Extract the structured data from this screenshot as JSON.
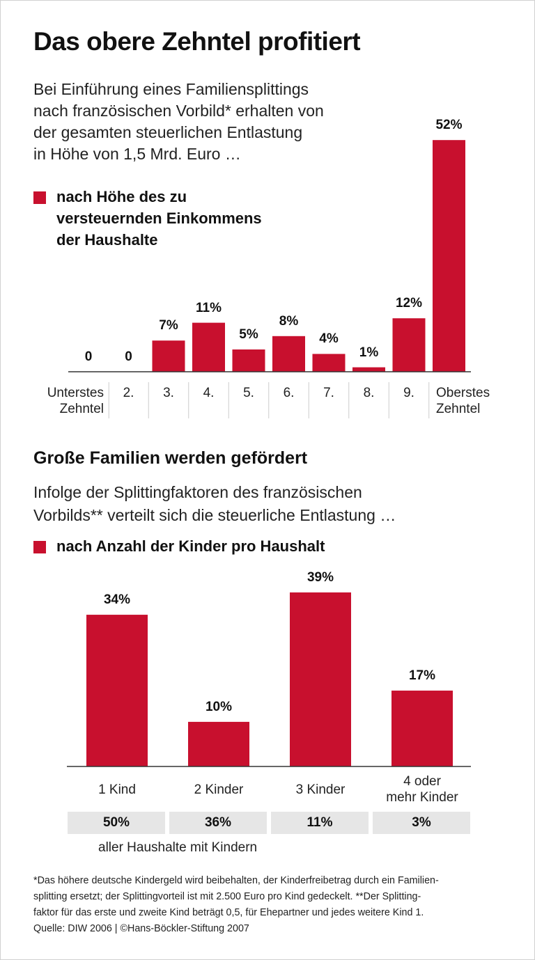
{
  "title": "Das obere Zehntel profitiert",
  "chart_data": [
    {
      "type": "bar",
      "subtitle": "Bei Einführung eines Familiensplittings\nnach französischen Vorbild* erhalten von\nder gesamten steuerlichen Entlastung\nin Höhe von 1,5 Mrd. Euro …",
      "categories": [
        "Unterstes\nZehntel",
        "2.",
        "3.",
        "4.",
        "5.",
        "6.",
        "7.",
        "8.",
        "9.",
        "Oberstes\nZehntel"
      ],
      "series": [
        {
          "name": "nach Höhe des zu\nversteuernden Einkommens\nder Haushalte",
          "color": "#c8102e",
          "values": [
            0,
            0,
            7,
            11,
            5,
            8,
            4,
            1,
            12,
            52
          ],
          "value_labels": [
            "0",
            "0",
            "7%",
            "11%",
            "5%",
            "8%",
            "4%",
            "1%",
            "12%",
            "52%"
          ]
        }
      ]
    },
    {
      "type": "bar",
      "title": "Große Familien werden gefördert",
      "subtitle": "Infolge der Splittingfaktoren des französischen\nVorbilds** verteilt sich die steuerliche Entlastung …",
      "categories": [
        "1 Kind",
        "2 Kinder",
        "3 Kinder",
        "4 oder\nmehr Kinder"
      ],
      "series": [
        {
          "name": "nach Anzahl der Kinder pro Haushalt",
          "color": "#c8102e",
          "values": [
            34,
            10,
            39,
            17
          ],
          "value_labels": [
            "34%",
            "10%",
            "39%",
            "17%"
          ]
        }
      ],
      "shares": {
        "values": [
          50,
          36,
          11,
          3
        ],
        "value_labels": [
          "50%",
          "36%",
          "11%",
          "3%"
        ],
        "label": "aller Haushalte mit Kindern"
      }
    }
  ],
  "footnote": "*Das höhere deutsche Kindergeld wird beibehalten, der Kinderfreibetrag durch ein Familien-\nsplitting ersetzt; der Splittingvorteil ist mit 2.500 Euro pro Kind gedeckelt. **Der Splitting-\nfaktor für das erste und zweite Kind beträgt 0,5, für Ehepartner und jedes weitere Kind 1.\nQuelle: DIW 2006 | ©Hans-Böckler-Stiftung 2007"
}
